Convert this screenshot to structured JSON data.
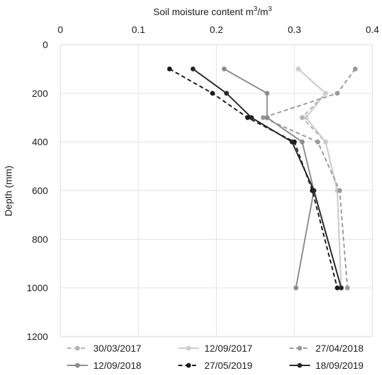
{
  "chart_data": {
    "type": "line",
    "xlabel": "Soil moisture content m³/m³",
    "xlabel_main": "Soil moisture content m",
    "xlabel_mid": "/m",
    "xlabel_sup": "3",
    "ylabel": "Depth (mm)",
    "x_axis_position": "top",
    "y_axis_inverted": true,
    "xlim": [
      0,
      0.4
    ],
    "ylim": [
      0,
      1200
    ],
    "x_ticks": [
      0,
      0.1,
      0.2,
      0.3,
      0.4
    ],
    "x_tick_labels": [
      "0",
      "0.1",
      "0.2",
      "0.3",
      "0.4"
    ],
    "y_ticks": [
      0,
      200,
      400,
      600,
      800,
      1000,
      1200
    ],
    "y_tick_labels": [
      "0",
      "200",
      "400",
      "600",
      "800",
      "1000",
      "1200"
    ],
    "grid": true,
    "legend_position": "bottom",
    "series": [
      {
        "name": "30/03/2017",
        "color": "#b3b3b3",
        "dash": "dashed",
        "points": [
          [
            0.305,
            100
          ],
          [
            0.34,
            200
          ],
          [
            0.31,
            300
          ],
          [
            0.34,
            400
          ],
          [
            0.355,
            600
          ],
          [
            0.36,
            1000
          ]
        ]
      },
      {
        "name": "12/09/2017",
        "color": "#cccccc",
        "dash": "solid",
        "points": [
          [
            0.305,
            100
          ],
          [
            0.34,
            200
          ],
          [
            0.315,
            300
          ],
          [
            0.34,
            400
          ],
          [
            0.355,
            600
          ],
          [
            0.36,
            1000
          ]
        ]
      },
      {
        "name": "27/04/2018",
        "color": "#999999",
        "dash": "dashed",
        "points": [
          [
            0.378,
            100
          ],
          [
            0.355,
            200
          ],
          [
            0.26,
            300
          ],
          [
            0.33,
            400
          ],
          [
            0.358,
            600
          ],
          [
            0.368,
            1000
          ]
        ]
      },
      {
        "name": "12/09/2018",
        "color": "#8c8c8c",
        "dash": "solid",
        "points": [
          [
            0.21,
            100
          ],
          [
            0.265,
            200
          ],
          [
            0.265,
            300
          ],
          [
            0.31,
            400
          ],
          [
            0.325,
            600
          ],
          [
            0.302,
            1000
          ]
        ]
      },
      {
        "name": "27/05/2019",
        "color": "#1a1a1a",
        "dash": "dashed",
        "points": [
          [
            0.14,
            100
          ],
          [
            0.195,
            200
          ],
          [
            0.24,
            300
          ],
          [
            0.3,
            400
          ],
          [
            0.323,
            600
          ],
          [
            0.355,
            1000
          ]
        ]
      },
      {
        "name": "18/09/2019",
        "color": "#262626",
        "dash": "solid",
        "points": [
          [
            0.17,
            100
          ],
          [
            0.213,
            200
          ],
          [
            0.245,
            300
          ],
          [
            0.297,
            400
          ],
          [
            0.325,
            600
          ],
          [
            0.36,
            1000
          ]
        ]
      }
    ]
  }
}
